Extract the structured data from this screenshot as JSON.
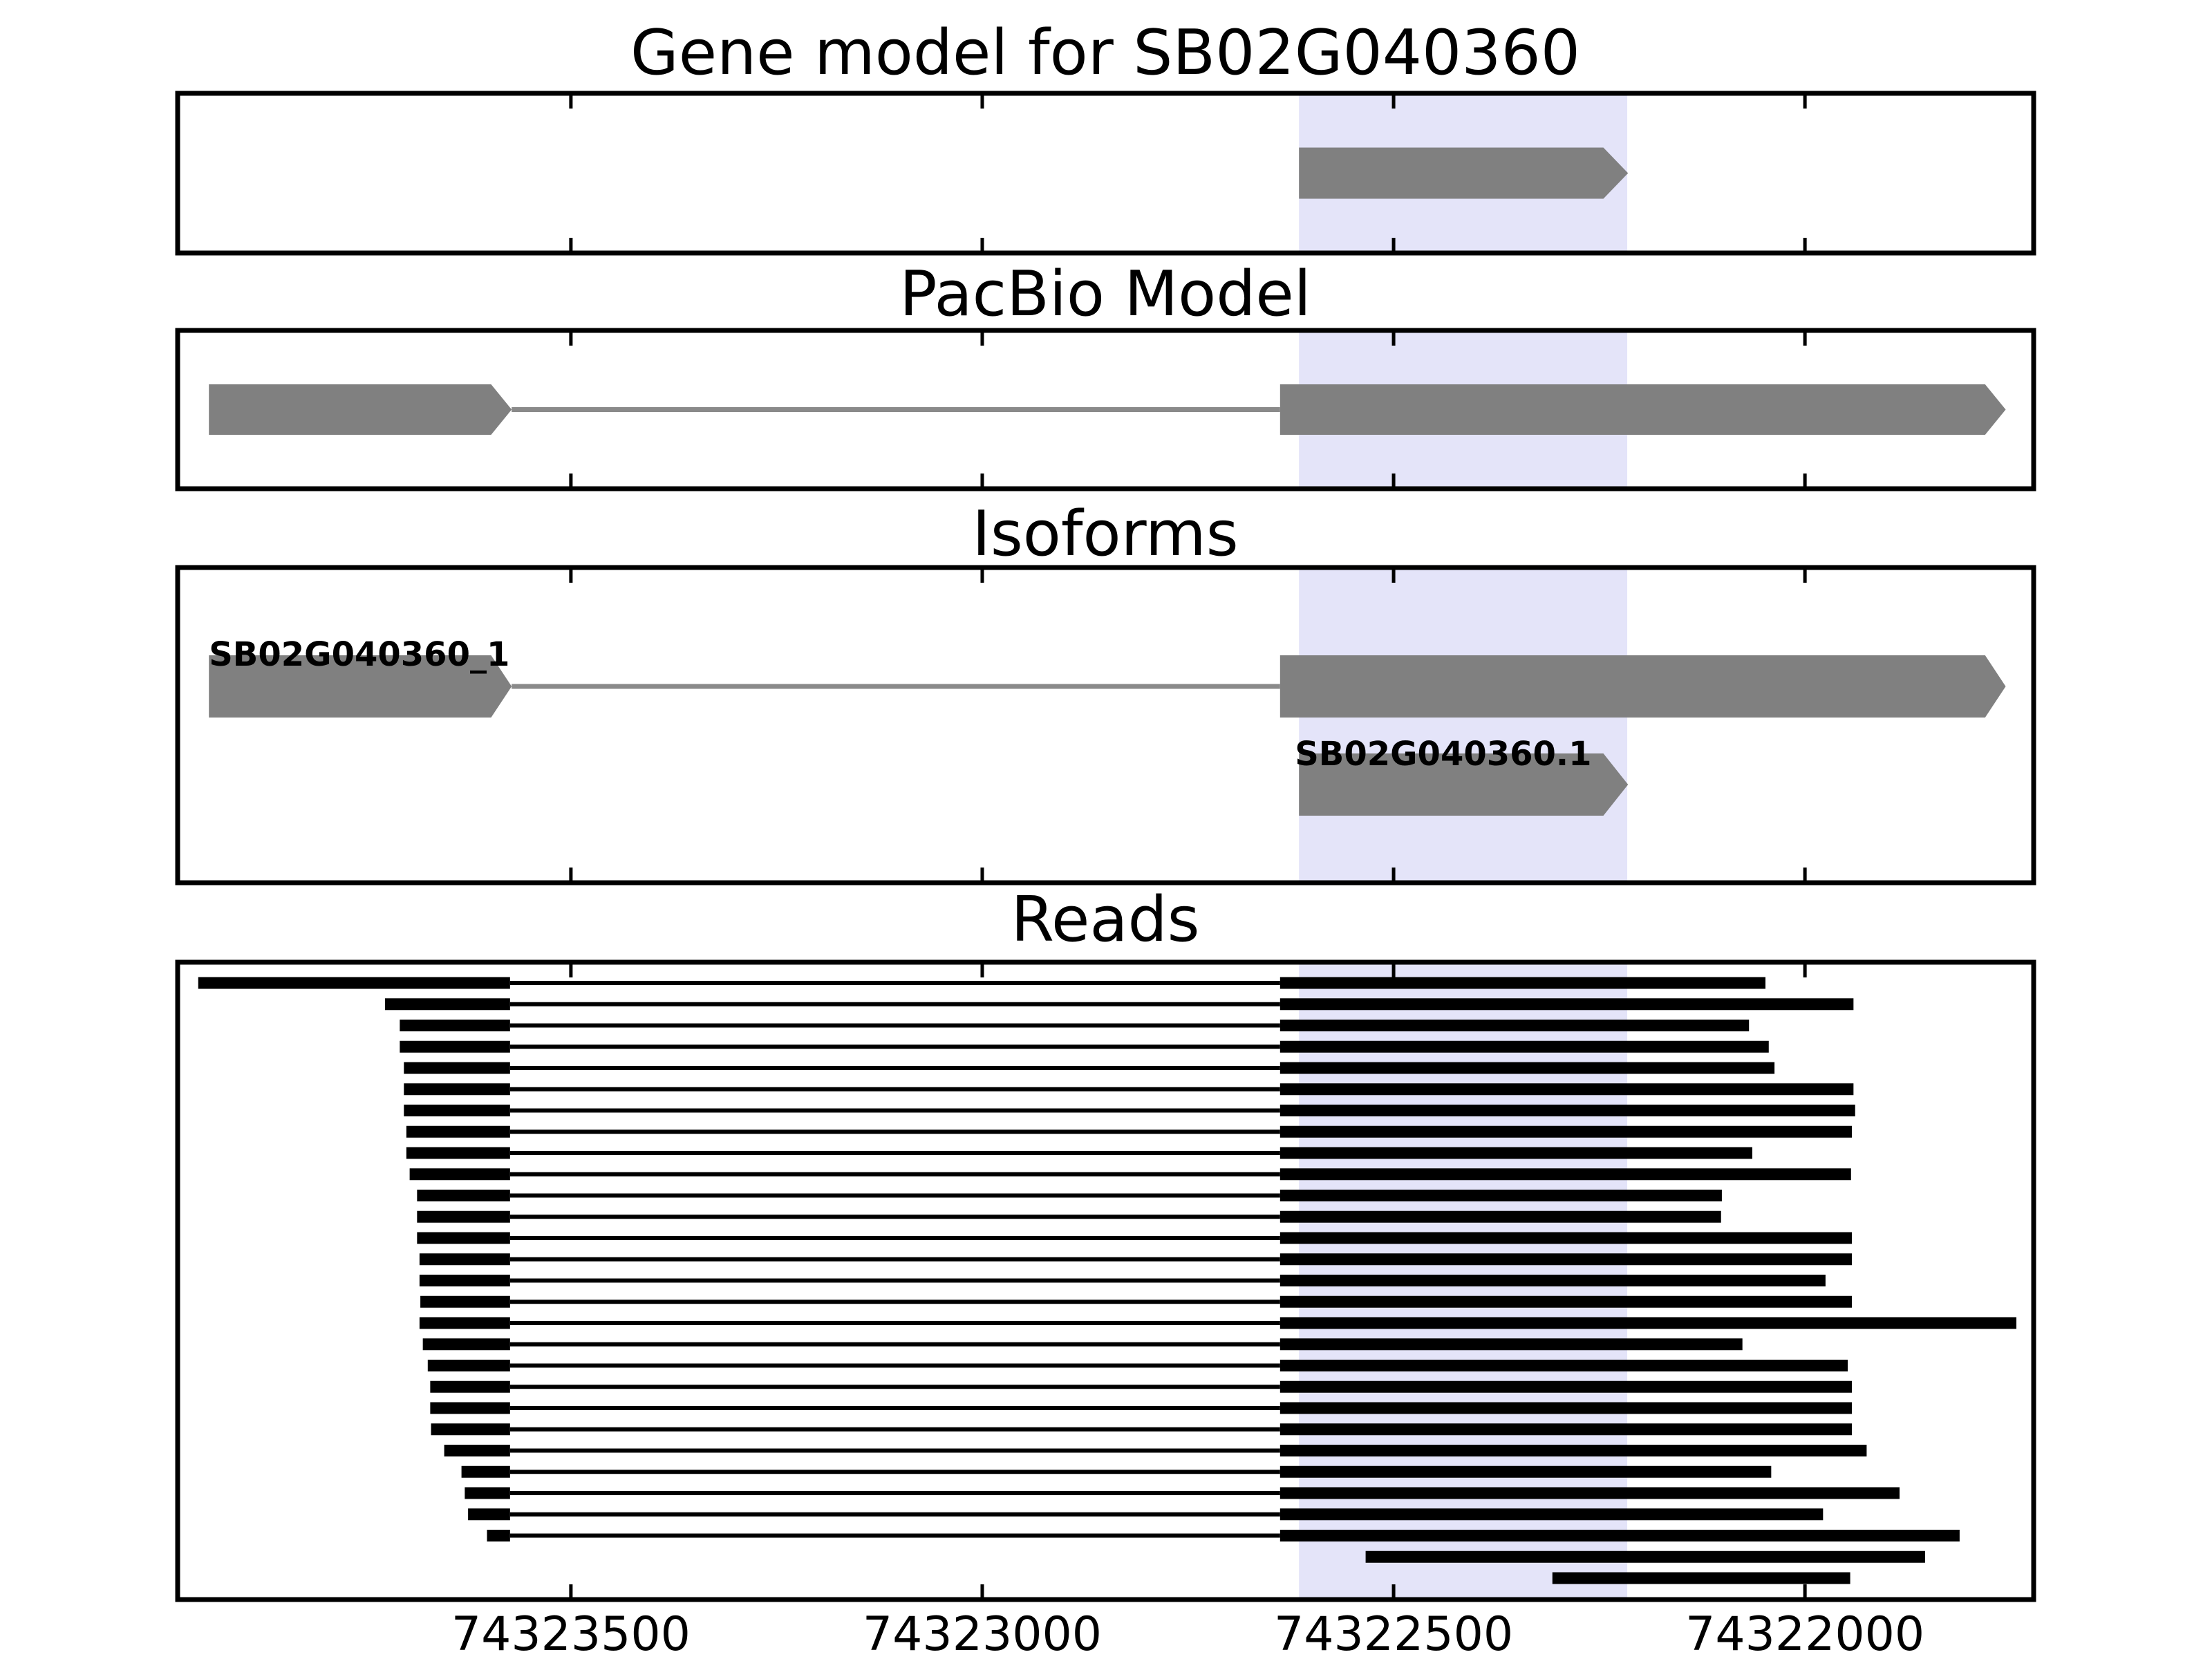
{
  "chart_data": {
    "type": "gene-model-tracks",
    "title": "Gene model for SB02G040360",
    "panel_titles": [
      "PacBio Model",
      "Isoforms",
      "Reads"
    ],
    "axis": {
      "xlim_left": 74323978,
      "xlim_right": 74321722,
      "inverted": true,
      "ticks": [
        74323500,
        74323000,
        74322500,
        74322000
      ],
      "tick_labels": [
        "74323500",
        "74323000",
        "74322500",
        "74322000"
      ]
    },
    "highlight_region": {
      "start": 74322615,
      "end": 74322216
    },
    "gene_model": {
      "id": "SB02G040360",
      "start": 74322615,
      "body_end": 74322245,
      "end": 74322215
    },
    "pacbio_model": {
      "exon1": {
        "start": 74323940,
        "taper_start": 74323597,
        "end": 74323572
      },
      "intron": {
        "start": 74323572,
        "end": 74322638
      },
      "exon2": {
        "start": 74322638,
        "body_end": 74321781,
        "end": 74321756
      }
    },
    "isoforms": [
      {
        "label": "SB02G040360_1",
        "structure": "pacbio"
      },
      {
        "label": "SB02G040360.1",
        "structure": "gene_model"
      }
    ],
    "splice_junctions": {
      "exon1_end": 74323574,
      "exon2_start": 74322638
    },
    "reads_spliced": [
      [
        74323953,
        74322048
      ],
      [
        74323726,
        74321941
      ],
      [
        74323708,
        74322068
      ],
      [
        74323708,
        74322044
      ],
      [
        74323703,
        74322037
      ],
      [
        74323703,
        74321941
      ],
      [
        74323703,
        74321939
      ],
      [
        74323700,
        74321943
      ],
      [
        74323700,
        74322064
      ],
      [
        74323696,
        74321944
      ],
      [
        74323687,
        74322101
      ],
      [
        74323687,
        74322102
      ],
      [
        74323687,
        74321943
      ],
      [
        74323684,
        74321943
      ],
      [
        74323684,
        74321975
      ],
      [
        74323683,
        74321943
      ],
      [
        74323684,
        74321743
      ],
      [
        74323680,
        74322076
      ],
      [
        74323674,
        74321948
      ],
      [
        74323671,
        74321943
      ],
      [
        74323671,
        74321943
      ],
      [
        74323670,
        74321943
      ],
      [
        74323654,
        74321925
      ],
      [
        74323633,
        74322041
      ],
      [
        74323629,
        74321885
      ],
      [
        74323625,
        74321978
      ],
      [
        74323602,
        74321812
      ]
    ],
    "reads_single": [
      [
        74322534,
        74321854
      ],
      [
        74322307,
        74321945
      ]
    ],
    "colors": {
      "model_fill": "#808080",
      "model_intron": "#8a8a8a",
      "read": "#000000",
      "highlight": "#e4e4f9",
      "frame": "#000000",
      "background": "#ffffff"
    }
  }
}
